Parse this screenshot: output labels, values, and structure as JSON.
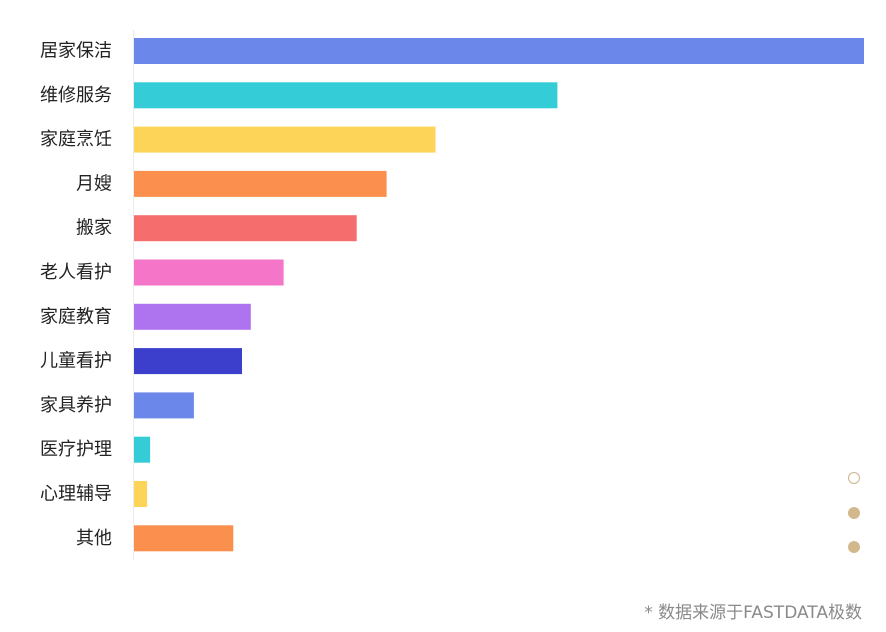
{
  "chart_data": {
    "type": "bar",
    "orientation": "horizontal",
    "categories": [
      "居家保洁",
      "维修服务",
      "家庭烹饪",
      "月嫂",
      "搬家",
      "老人看护",
      "家庭教育",
      "儿童看护",
      "家具养护",
      "医疗护理",
      "心理辅导",
      "其他"
    ],
    "values": [
      100,
      58,
      41.3,
      34.6,
      30.5,
      20.5,
      16,
      14.8,
      8.2,
      2.2,
      1.8,
      13.6
    ],
    "colors": [
      "#6b87ea",
      "#34ccd6",
      "#fdd458",
      "#fb8f4d",
      "#f56d6d",
      "#f576c9",
      "#ae74f0",
      "#3b3fcb",
      "#6b87ea",
      "#34ccd6",
      "#fdd458",
      "#fb8f4d"
    ],
    "title": "",
    "xlabel": "",
    "ylabel": "",
    "xlim": [
      0,
      100
    ],
    "grid": false,
    "legend": false
  },
  "pager": {
    "dot_count": 3,
    "active_index": 0
  },
  "source_note": "* 数据来源于FASTDATA极数"
}
